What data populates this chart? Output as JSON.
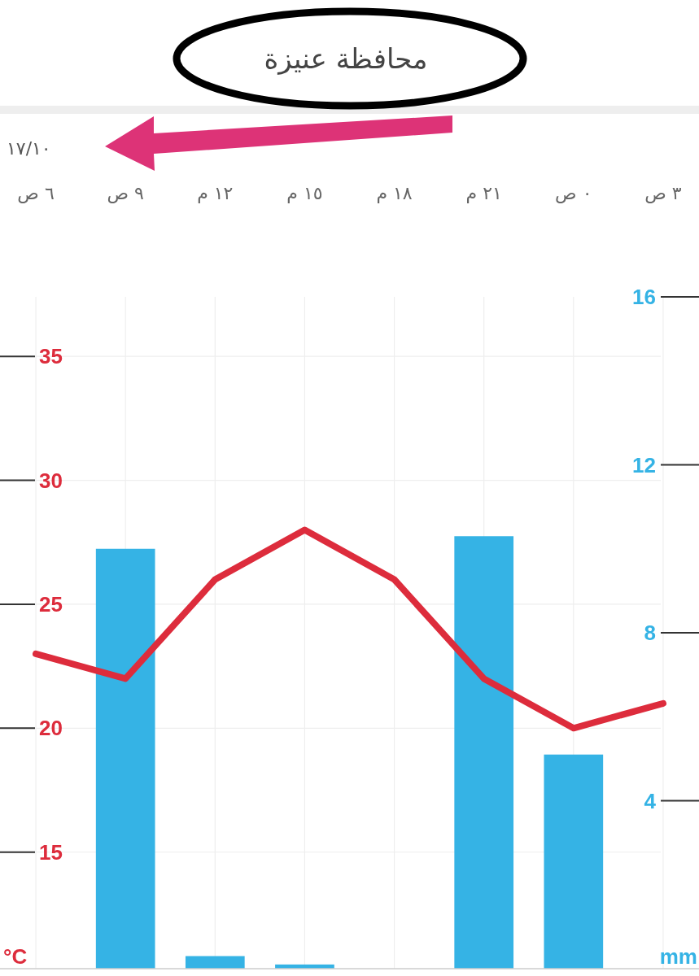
{
  "chart_data": {
    "type": "bar",
    "title": "محافظة عنيزة",
    "annotations": [
      "١٧/١٠"
    ],
    "categories": [
      "٦ ص",
      "٩ ص",
      "١٢ م",
      "١٥ م",
      "١٨ م",
      "٢١ م",
      "٠ ص",
      "٣ ص"
    ],
    "series": [
      {
        "axis": "y2",
        "color": "#35b3e5",
        "values": [
          null,
          10,
          0.3,
          0.1,
          0,
          10.3,
          5.1,
          null
        ]
      },
      {
        "type": "line",
        "color": "#dd2c3c",
        "values": [
          23,
          22,
          26,
          28,
          26,
          22,
          20,
          21
        ]
      }
    ],
    "ylabel": "°C",
    "y2label": "mm",
    "ylim": [
      10.3,
      37.4
    ],
    "yticks": [
      15,
      20,
      25,
      30,
      35
    ],
    "y2lim": [
      0,
      16
    ],
    "y2ticks": [
      4,
      8,
      12,
      16
    ],
    "grid": true,
    "marker": "none",
    "line_style": "solid"
  }
}
